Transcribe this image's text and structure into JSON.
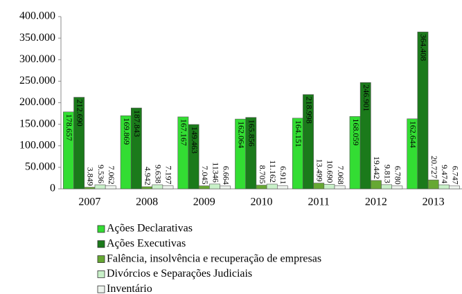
{
  "chart_data": {
    "type": "bar",
    "categories": [
      "2007",
      "2008",
      "2009",
      "2010",
      "2011",
      "2012",
      "2013"
    ],
    "series": [
      {
        "name": "Ações Declarativas",
        "color": "#33dd33",
        "values": [
          178657,
          169869,
          167167,
          162064,
          164151,
          168059,
          162644
        ],
        "value_labels": [
          "178.657",
          "169.869",
          "167.167",
          "162.064",
          "164.151",
          "168.059",
          "162.644"
        ]
      },
      {
        "name": "Ações Executivas",
        "color": "#1b7a1b",
        "values": [
          212690,
          187843,
          149463,
          165856,
          218998,
          246901,
          364408
        ],
        "value_labels": [
          "212.690",
          "187.843",
          "149.463",
          "165.856",
          "218.998",
          "246.901",
          "364.408"
        ]
      },
      {
        "name": "Falência, insolvência e recuperação de empresas",
        "color": "#66a833",
        "values": [
          3849,
          4942,
          7045,
          8705,
          13499,
          19442,
          20727
        ],
        "value_labels": [
          "3.849",
          "4.942",
          "7.045",
          "8.705",
          "13.499",
          "19.442",
          "20.727"
        ]
      },
      {
        "name": "Divórcios e Separações Judiciais",
        "color": "#c8f0c8",
        "values": [
          9536,
          9638,
          11346,
          11162,
          10690,
          9813,
          9474
        ],
        "value_labels": [
          "9.536",
          "9.638",
          "11346",
          "11.162",
          "10.690",
          "9.813",
          "9.474"
        ]
      },
      {
        "name": "Inventário",
        "color": "#eef4ee",
        "values": [
          7062,
          7197,
          6664,
          6911,
          7068,
          6780,
          6747
        ],
        "value_labels": [
          "7.062",
          "7.197",
          "6.664",
          "6.911",
          "7.068",
          "6.780",
          "6.747"
        ]
      }
    ],
    "ylim": [
      0,
      400000
    ],
    "yticks": [
      {
        "value": 0,
        "label": "0"
      },
      {
        "value": 50000,
        "label": "50.000"
      },
      {
        "value": 100000,
        "label": "100.000"
      },
      {
        "value": 150000,
        "label": "150.000"
      },
      {
        "value": 200000,
        "label": "200.000"
      },
      {
        "value": 250000,
        "label": "250.000"
      },
      {
        "value": 300000,
        "label": "300.000"
      },
      {
        "value": 350000,
        "label": "350.000"
      },
      {
        "value": 400000,
        "label": "400.000"
      }
    ],
    "grid": false
  }
}
